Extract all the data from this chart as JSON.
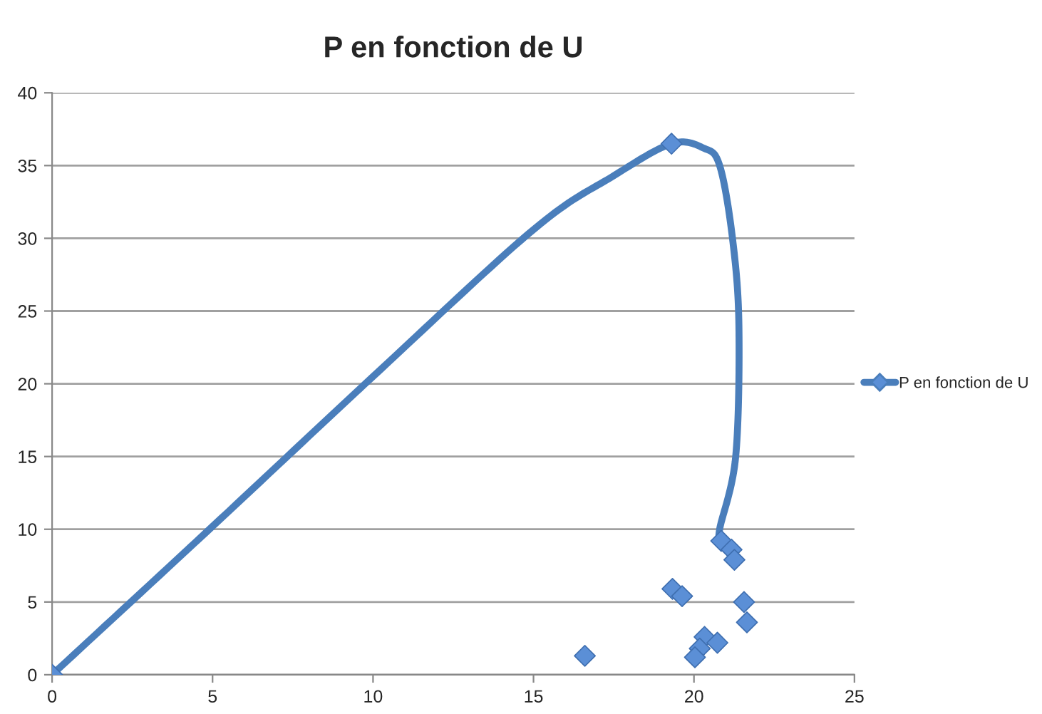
{
  "chart_data": {
    "type": "scatter",
    "title": "P en fonction de U",
    "xlim": [
      0,
      25
    ],
    "xticks": [
      0,
      5,
      10,
      15,
      20,
      25
    ],
    "ylim": [
      0,
      40
    ],
    "yticks": [
      0,
      5,
      10,
      15,
      20,
      25,
      30,
      35,
      40
    ],
    "grid": "y",
    "legend": "right",
    "series": [
      {
        "name": "P en fonction de U",
        "type": "line",
        "color": "#4a7ebb",
        "marker": "none",
        "x": [
          0,
          5,
          10,
          15,
          17.5,
          19.3,
          20.3,
          20.8,
          21.2,
          21.4,
          21.3,
          20.8,
          20.85
        ],
        "values": [
          0,
          10.2,
          20.5,
          30.6,
          34.3,
          36.5,
          36.2,
          35,
          30,
          24,
          15,
          10,
          9.2
        ]
      },
      {
        "color": "#5b8fd6",
        "marker": "diamond",
        "x": [
          0,
          19.3,
          20.85,
          21.17,
          21.26,
          19.33,
          19.63,
          21.56,
          21.65,
          20.33,
          20.73,
          20.18,
          20.03,
          16.6
        ],
        "values": [
          0,
          36.5,
          9.2,
          8.6,
          7.9,
          5.9,
          5.4,
          5.0,
          3.6,
          2.6,
          2.2,
          1.8,
          1.2,
          1.3
        ]
      }
    ]
  }
}
